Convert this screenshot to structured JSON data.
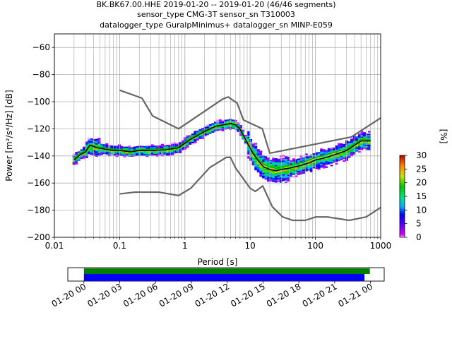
{
  "title_lines": [
    "BK.BK67.00.HHE   2019-01-20 -- 2019-01-20  (46/46 segments)",
    "sensor_type CMG-3T sensor_sn T310003",
    "datalogger_type GuralpMinimus+ datalogger_sn MINP-E059"
  ],
  "chart_data": [
    {
      "type": "heatmap",
      "xlabel": "Period [s]",
      "ylabel": "Power [m²/s⁴/Hz] [dB]",
      "xscale": "log",
      "xlim": [
        0.01,
        1000
      ],
      "ylim": [
        -200,
        -50
      ],
      "x_ticks": [
        {
          "value": 0.01,
          "label": "0.01"
        },
        {
          "value": 0.1,
          "label": "0.1"
        },
        {
          "value": 1,
          "label": "1"
        },
        {
          "value": 10,
          "label": "10"
        },
        {
          "value": 100,
          "label": "100"
        },
        {
          "value": 1000,
          "label": "1000"
        }
      ],
      "y_ticks": [
        -200,
        -180,
        -160,
        -140,
        -120,
        -100,
        -80,
        -60
      ],
      "grid": true,
      "colorbar": {
        "label": "[%]",
        "range": [
          0,
          30
        ],
        "ticks": [
          0,
          5,
          10,
          15,
          20,
          25,
          30
        ]
      },
      "series": [
        {
          "role": "high-noise-model",
          "x": [
            0.1,
            0.22,
            0.32,
            0.8,
            3.8,
            4.6,
            6.3,
            7.9,
            15.4,
            20,
            354.8,
            1000
          ],
          "y": [
            -91.5,
            -97.4,
            -110.5,
            -120,
            -98,
            -96.5,
            -101,
            -113.5,
            -120,
            -138,
            -126,
            -112
          ]
        },
        {
          "role": "low-noise-model",
          "x": [
            0.1,
            0.17,
            0.4,
            0.8,
            1.24,
            2.4,
            4.3,
            5,
            6,
            10,
            12,
            15.6,
            21.9,
            31.6,
            45,
            70,
            101,
            154,
            328,
            600,
            1000
          ],
          "y": [
            -168,
            -166.7,
            -166.7,
            -169.2,
            -163.7,
            -148.6,
            -141.1,
            -141.1,
            -149,
            -163.8,
            -166.2,
            -162.1,
            -177.5,
            -185,
            -187.5,
            -187.5,
            -185,
            -185,
            -187.5,
            -185,
            -178
          ]
        },
        {
          "role": "mode",
          "x": [
            0.02,
            0.025,
            0.03,
            0.035,
            0.045,
            0.06,
            0.08,
            0.1,
            0.15,
            0.2,
            0.3,
            0.5,
            0.8,
            1.2,
            2,
            3,
            4,
            5,
            6,
            7,
            9,
            11,
            13,
            16,
            20,
            25,
            30,
            40,
            60,
            80,
            100,
            150,
            200,
            300,
            500,
            700
          ],
          "y": [
            -143,
            -139,
            -137,
            -132,
            -134,
            -135,
            -136,
            -136,
            -137,
            -136,
            -136,
            -135.5,
            -134,
            -128,
            -122,
            -118,
            -117,
            -116,
            -117,
            -120,
            -130,
            -138,
            -143,
            -148,
            -150,
            -151,
            -150,
            -149,
            -147,
            -145,
            -143,
            -141,
            -139,
            -136,
            -129,
            -129
          ]
        },
        {
          "role": "mean",
          "x": [
            0.02,
            0.025,
            0.03,
            0.035,
            0.045,
            0.06,
            0.08,
            0.1,
            0.15,
            0.2,
            0.3,
            0.5,
            0.8,
            1.2,
            2,
            3,
            4,
            5,
            6,
            7,
            9,
            11,
            13,
            16,
            20,
            25,
            30,
            40,
            60,
            80,
            100,
            150,
            200,
            300,
            500,
            700
          ],
          "y": [
            -142,
            -138,
            -136,
            -132,
            -133,
            -134,
            -135,
            -135.5,
            -136,
            -135.5,
            -135,
            -134.5,
            -133,
            -127,
            -121,
            -118,
            -117,
            -116.5,
            -118,
            -121,
            -131,
            -137,
            -142,
            -146,
            -148,
            -149,
            -148,
            -147,
            -145,
            -143,
            -141,
            -139,
            -137,
            -135,
            -128,
            -128
          ]
        }
      ]
    },
    {
      "type": "timeline",
      "x_ticks": [
        "01-20 00",
        "01-20 03",
        "01-20 06",
        "01-20 09",
        "01-20 12",
        "01-20 15",
        "01-20 18",
        "01-20 21",
        "01-21 00"
      ],
      "x_range_hours": [
        -1.35,
        25.15
      ],
      "bars": [
        {
          "role": "data-coverage",
          "color": "#008000",
          "start_hours": 0,
          "end_hours": 23.95
        },
        {
          "role": "psd-coverage",
          "color": "#0000ff",
          "start_hours": 0,
          "end_hours": 23.5
        }
      ]
    }
  ]
}
